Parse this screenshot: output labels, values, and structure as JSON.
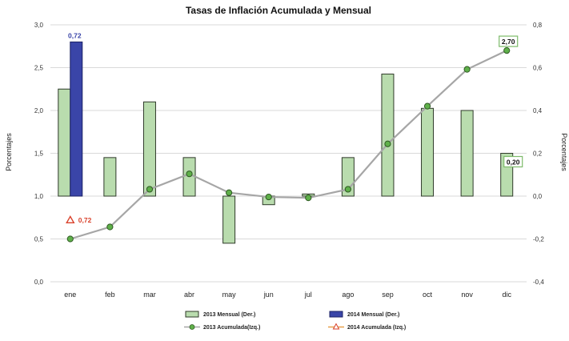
{
  "chart_data": {
    "type": "bar",
    "title": "Tasas de Inflación Acumulada y Mensual",
    "ylabel_left": "Porcentajes",
    "ylabel_right": "Porcentajes",
    "categories": [
      "ene",
      "feb",
      "mar",
      "abr",
      "may",
      "jun",
      "jul",
      "ago",
      "sep",
      "oct",
      "nov",
      "dic"
    ],
    "y_left": {
      "min": 0.0,
      "max": 3.0,
      "ticks": [
        "0,0",
        "0,5",
        "1,0",
        "1,5",
        "2,0",
        "2,5",
        "3,0"
      ]
    },
    "y_right": {
      "min": -0.4,
      "max": 0.8,
      "ticks": [
        "-0,4",
        "-0,2",
        "0,0",
        "0,2",
        "0,4",
        "0,6",
        "0,8"
      ]
    },
    "grid": true,
    "legend_position": "bottom",
    "series": [
      {
        "name": "2013 Mensual (Der.)",
        "type": "bar",
        "axis": "right",
        "color": "#b9dcae",
        "stroke": "#2f3a2a",
        "values": [
          0.5,
          0.18,
          0.44,
          0.18,
          -0.22,
          -0.04,
          0.01,
          0.18,
          0.57,
          0.41,
          0.4,
          0.2
        ]
      },
      {
        "name": "2014 Mensual (Der.)",
        "type": "bar",
        "axis": "right",
        "color": "#3a45a8",
        "stroke": "#1c2266",
        "values": [
          0.72,
          null,
          null,
          null,
          null,
          null,
          null,
          null,
          null,
          null,
          null,
          null
        ]
      },
      {
        "name": "2013 Acumulada(Izq.)",
        "type": "line",
        "axis": "left",
        "color": "#a6a6a6",
        "marker_color": "#5fb04a",
        "values": [
          0.5,
          0.64,
          1.08,
          1.26,
          1.04,
          0.99,
          0.98,
          1.08,
          1.61,
          2.05,
          2.48,
          2.7
        ]
      },
      {
        "name": "2014 Acumulada (Izq.)",
        "type": "line",
        "axis": "left",
        "color": "#e8a04a",
        "marker_color": "#d9412b",
        "values": [
          0.72,
          null,
          null,
          null,
          null,
          null,
          null,
          null,
          null,
          null,
          null,
          null
        ]
      }
    ],
    "annotations": [
      {
        "text": "0,72",
        "category": "ene",
        "series": "2014 Mensual (Der.)",
        "color": "#3a45a8"
      },
      {
        "text": "0,72",
        "category": "ene",
        "series": "2014 Acumulada (Izq.)",
        "color": "#d9412b"
      },
      {
        "text": "2,70",
        "category": "dic",
        "series": "2013 Acumulada(Izq.)",
        "boxed": true
      },
      {
        "text": "0,20",
        "category": "dic",
        "series": "2013 Mensual (Der.)",
        "boxed": true
      }
    ]
  }
}
